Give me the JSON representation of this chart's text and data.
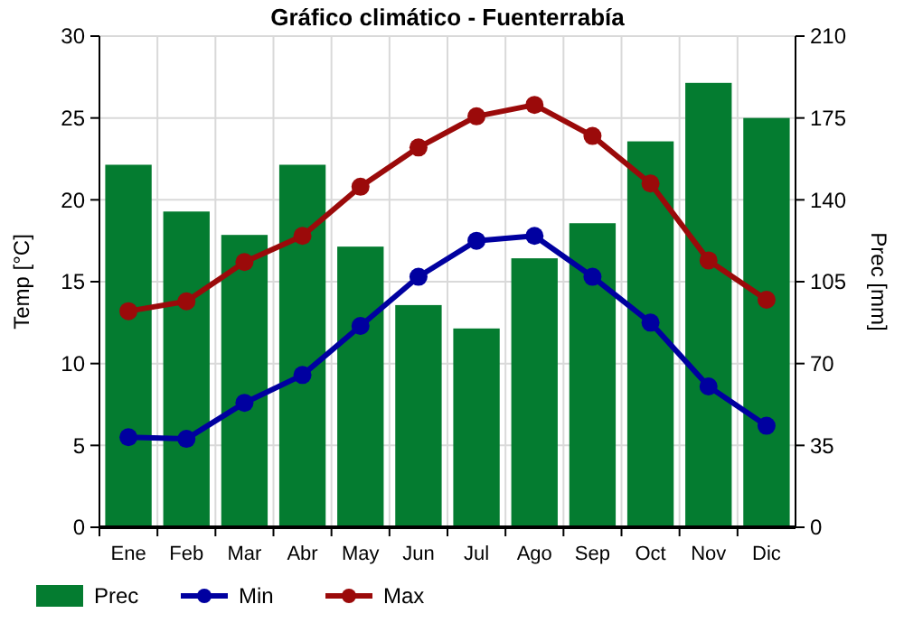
{
  "chart_data": {
    "type": "bar",
    "title": "Gráfico climático - Fuenterrabía",
    "categories": [
      "Ene",
      "Feb",
      "Mar",
      "Abr",
      "May",
      "Jun",
      "Jul",
      "Ago",
      "Sep",
      "Oct",
      "Nov",
      "Dic"
    ],
    "series": [
      {
        "name": "Prec",
        "axis": "y2",
        "color": "#047c30",
        "values": [
          155,
          135,
          125,
          155,
          120,
          95,
          85,
          115,
          130,
          165,
          190,
          175
        ]
      },
      {
        "name": "Min",
        "type": "line",
        "axis": "y",
        "color": "#0000a0",
        "values": [
          5.5,
          5.4,
          7.6,
          9.3,
          12.3,
          15.3,
          17.5,
          17.8,
          15.3,
          12.5,
          8.6,
          6.2
        ]
      },
      {
        "name": "Max",
        "type": "line",
        "axis": "y",
        "color": "#9b0a0a",
        "values": [
          13.2,
          13.8,
          16.2,
          17.8,
          20.8,
          23.2,
          25.1,
          25.8,
          23.9,
          21.0,
          16.3,
          13.9
        ]
      }
    ],
    "ylabel": "Temp [°C]",
    "y2label": "Prec [mm]",
    "ylim": [
      0,
      30
    ],
    "yticks": [
      0,
      5,
      10,
      15,
      20,
      25,
      30
    ],
    "y2lim": [
      0,
      210
    ],
    "y2ticks": [
      0,
      35,
      70,
      105,
      140,
      175,
      210
    ],
    "grid": true,
    "legend": "bottom left",
    "marker": "circle",
    "line_style": "solid"
  }
}
